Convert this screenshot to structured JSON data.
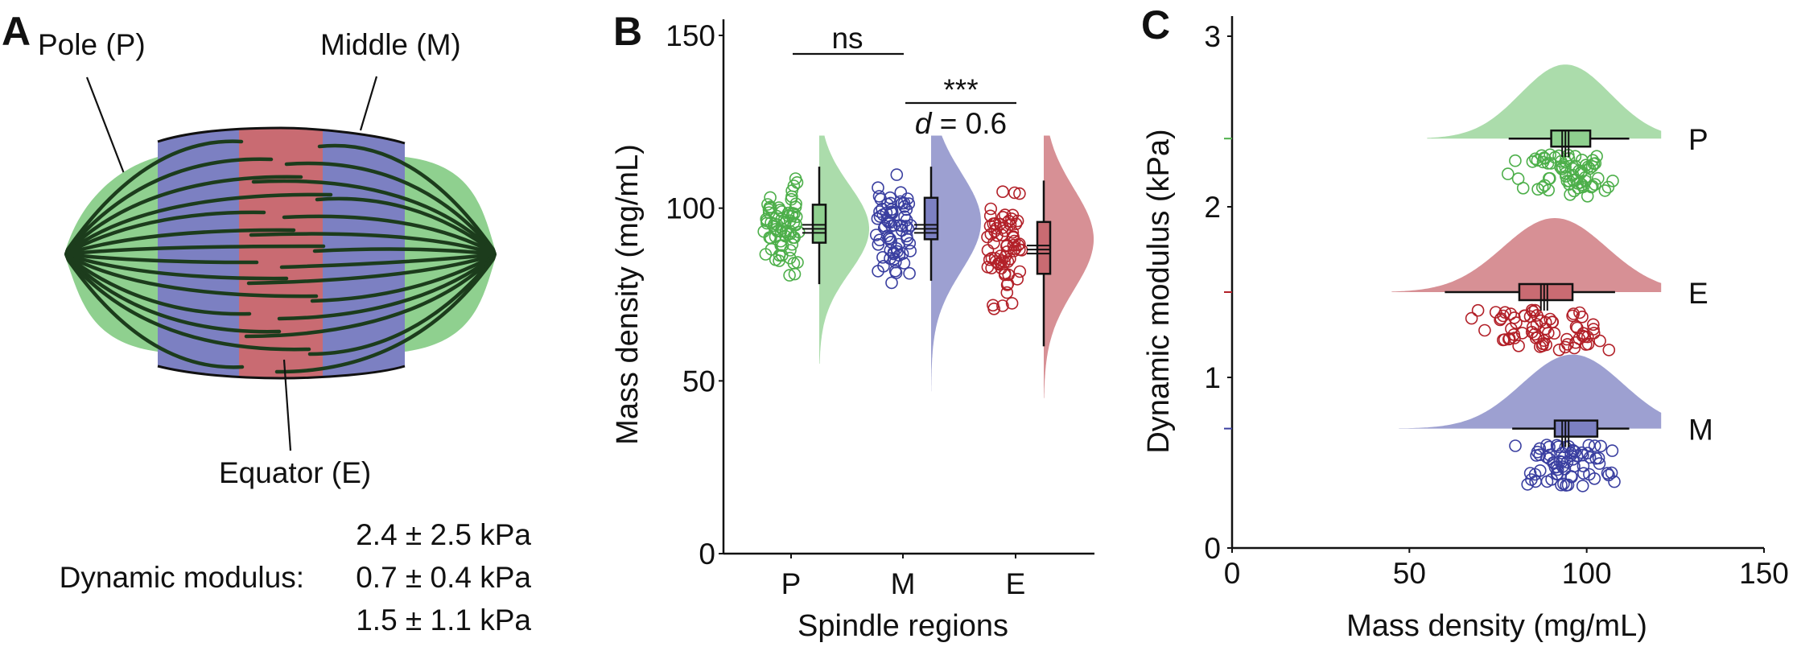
{
  "figure": {
    "panel_labels": [
      "A",
      "B",
      "C"
    ]
  },
  "colors": {
    "pole": "#4daf4a",
    "pole_fill": "#8fd08f",
    "middle": "#3a3fa0",
    "middle_fill": "#7c80c2",
    "equator": "#b22028",
    "equator_fill": "#c96b72"
  },
  "panel_a": {
    "type": "diagram",
    "labels": {
      "pole": "Pole (P)",
      "middle": "Middle (M)",
      "equator": "Equator (E)"
    },
    "modulus_title": "Dynamic modulus:",
    "modulus_values": [
      {
        "region": "P",
        "text": "2.4 ± 2.5 kPa"
      },
      {
        "region": "M",
        "text": "0.7 ± 0.4 kPa"
      },
      {
        "region": "E",
        "text": "1.5 ± 1.1 kPa"
      }
    ]
  },
  "chart_data": [
    {
      "type": "raincloud",
      "panel": "B",
      "xlabel": "Spindle regions",
      "ylabel": "Mass density (mg/mL)",
      "categories": [
        "P",
        "M",
        "E"
      ],
      "ylim": [
        0,
        150
      ],
      "yticks": [
        0,
        50,
        100,
        150
      ],
      "grid": false,
      "series": [
        {
          "name": "P",
          "box": {
            "whisker_low": 78,
            "q1": 90,
            "median": 94,
            "mean": 95,
            "q3": 101,
            "whisker_high": 112
          },
          "density_range": [
            55,
            121
          ],
          "density_peak": 94
        },
        {
          "name": "M",
          "box": {
            "whisker_low": 79,
            "q1": 91,
            "median": 94,
            "mean": 96,
            "q3": 103,
            "whisker_high": 112
          },
          "density_range": [
            47,
            121
          ],
          "density_peak": 96
        },
        {
          "name": "E",
          "box": {
            "whisker_low": 60,
            "q1": 81,
            "median": 88,
            "mean": 90,
            "q3": 96,
            "whisker_high": 108
          },
          "density_range": [
            45,
            121
          ],
          "density_peak": 91
        }
      ],
      "annotations": [
        {
          "between": [
            "P",
            "M"
          ],
          "text": "ns"
        },
        {
          "between": [
            "M",
            "E"
          ],
          "text": "***",
          "subtext": "d = 0.6",
          "subtext_italic": "d",
          "subtext_rest": " = 0.6"
        }
      ]
    },
    {
      "type": "raincloud-horizontal",
      "panel": "C",
      "xlabel": "Mass density (mg/mL)",
      "ylabel": "Dynamic modulus (kPa)",
      "xlim": [
        0,
        150
      ],
      "xticks": [
        0,
        50,
        100,
        150
      ],
      "ylim": [
        0,
        3
      ],
      "yticks": [
        0,
        1,
        2,
        3
      ],
      "grid": false,
      "series": [
        {
          "name": "P",
          "modulus": 2.4,
          "box": {
            "whisker_low": 78,
            "q1": 90,
            "median": 94,
            "mean": 95,
            "q3": 101,
            "whisker_high": 112
          },
          "density_range": [
            55,
            121
          ],
          "density_peak": 94
        },
        {
          "name": "E",
          "modulus": 1.5,
          "box": {
            "whisker_low": 60,
            "q1": 81,
            "median": 88,
            "mean": 90,
            "q3": 96,
            "whisker_high": 108
          },
          "density_range": [
            45,
            121
          ],
          "density_peak": 91
        },
        {
          "name": "M",
          "modulus": 0.7,
          "box": {
            "whisker_low": 79,
            "q1": 91,
            "median": 94,
            "mean": 96,
            "q3": 103,
            "whisker_high": 112
          },
          "density_range": [
            47,
            121
          ],
          "density_peak": 96
        }
      ]
    }
  ]
}
